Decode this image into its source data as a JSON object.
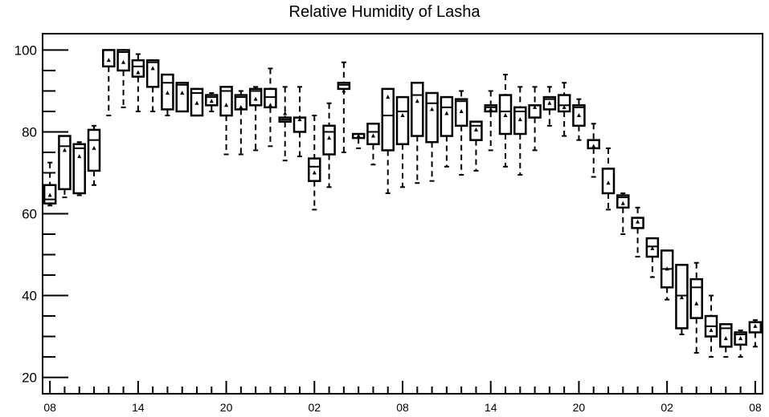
{
  "chart_data": {
    "type": "boxplot",
    "title": "Relative Humidity of Lasha",
    "xlabel": "",
    "ylabel": "",
    "ylim": [
      16,
      104
    ],
    "y_ticks": [
      20,
      40,
      60,
      80,
      100
    ],
    "x_ticks": [
      {
        "index": 0,
        "label": "08"
      },
      {
        "index": 6,
        "label": "14"
      },
      {
        "index": 12,
        "label": "20"
      },
      {
        "index": 18,
        "label": "02"
      },
      {
        "index": 24,
        "label": "08"
      },
      {
        "index": 30,
        "label": "14"
      },
      {
        "index": 36,
        "label": "20"
      },
      {
        "index": 42,
        "label": "02"
      },
      {
        "index": 48,
        "label": "08"
      }
    ],
    "x_range": [
      -0.5,
      48.5
    ],
    "boxes": [
      {
        "i": 0,
        "min": 62,
        "q1": 62.5,
        "median": 63.5,
        "q3": 67,
        "max": 72.5,
        "mean": 64.5
      },
      {
        "i": 1,
        "min": 64,
        "q1": 66,
        "median": 76.5,
        "q3": 79,
        "max": 79,
        "mean": 75.5
      },
      {
        "i": 2,
        "min": 64.5,
        "q1": 65,
        "median": 76,
        "q3": 77,
        "max": 77.5,
        "mean": 74
      },
      {
        "i": 3,
        "min": 67,
        "q1": 70.5,
        "median": 78,
        "q3": 80.5,
        "max": 81.5,
        "mean": 76
      },
      {
        "i": 4,
        "min": 84,
        "q1": 96,
        "median": 100,
        "q3": 100,
        "max": 100,
        "mean": 97.5
      },
      {
        "i": 5,
        "min": 86,
        "q1": 95,
        "median": 99.5,
        "q3": 100,
        "max": 100,
        "mean": 97
      },
      {
        "i": 6,
        "min": 85,
        "q1": 93.5,
        "median": 96,
        "q3": 97.5,
        "max": 99,
        "mean": 94.5
      },
      {
        "i": 7,
        "min": 85,
        "q1": 91,
        "median": 97,
        "q3": 97.5,
        "max": 97.5,
        "mean": 95.5
      },
      {
        "i": 8,
        "min": 84,
        "q1": 85.5,
        "median": 92,
        "q3": 94,
        "max": 94,
        "mean": 89.5
      },
      {
        "i": 9,
        "min": 85,
        "q1": 85,
        "median": 91.5,
        "q3": 92,
        "max": 92,
        "mean": 89.5
      },
      {
        "i": 10,
        "min": 84,
        "q1": 84,
        "median": 89.5,
        "q3": 90.5,
        "max": 90.5,
        "mean": 87
      },
      {
        "i": 11,
        "min": 85,
        "q1": 86.5,
        "median": 88.5,
        "q3": 89,
        "max": 89.5,
        "mean": 87.5
      },
      {
        "i": 12,
        "min": 74.5,
        "q1": 84,
        "median": 90,
        "q3": 91,
        "max": 91,
        "mean": 86.5
      },
      {
        "i": 13,
        "min": 74.5,
        "q1": 85.5,
        "median": 88.5,
        "q3": 89,
        "max": 90,
        "mean": 86
      },
      {
        "i": 14,
        "min": 75.5,
        "q1": 86.5,
        "median": 90,
        "q3": 90.5,
        "max": 91,
        "mean": 88
      },
      {
        "i": 15,
        "min": 76.5,
        "q1": 86,
        "median": 88.5,
        "q3": 90.5,
        "max": 95.5,
        "mean": 86.5
      },
      {
        "i": 16,
        "min": 73,
        "q1": 82.5,
        "median": 83,
        "q3": 83.5,
        "max": 91,
        "mean": 84.5
      },
      {
        "i": 17,
        "min": 74,
        "q1": 80,
        "median": 83.5,
        "q3": 83.5,
        "max": 91,
        "mean": 83
      },
      {
        "i": 18,
        "min": 61,
        "q1": 68,
        "median": 71.5,
        "q3": 73.5,
        "max": 84,
        "mean": 70
      },
      {
        "i": 19,
        "min": 66.5,
        "q1": 74.5,
        "median": 80,
        "q3": 81.5,
        "max": 87,
        "mean": 78.5
      },
      {
        "i": 20,
        "min": 75,
        "q1": 90.5,
        "median": 91.5,
        "q3": 92,
        "max": 97,
        "mean": 90
      },
      {
        "i": 21,
        "min": 76,
        "q1": 78.5,
        "median": 79.5,
        "q3": 79.5,
        "max": 79.5,
        "mean": 79
      },
      {
        "i": 22,
        "min": 72,
        "q1": 77,
        "median": 80,
        "q3": 82,
        "max": 82,
        "mean": 79
      },
      {
        "i": 23,
        "min": 65,
        "q1": 75.5,
        "median": 84,
        "q3": 90.5,
        "max": 90.5,
        "mean": 88.5
      },
      {
        "i": 24,
        "min": 66.5,
        "q1": 77,
        "median": 85,
        "q3": 88.5,
        "max": 88.5,
        "mean": 84
      },
      {
        "i": 25,
        "min": 67.5,
        "q1": 79,
        "median": 89,
        "q3": 92,
        "max": 92,
        "mean": 87.5
      },
      {
        "i": 26,
        "min": 68,
        "q1": 77.5,
        "median": 87,
        "q3": 89.5,
        "max": 89.5,
        "mean": 85.5
      },
      {
        "i": 27,
        "min": 71.5,
        "q1": 79,
        "median": 86,
        "q3": 88.5,
        "max": 88.5,
        "mean": 84.5
      },
      {
        "i": 28,
        "min": 69.5,
        "q1": 81.5,
        "median": 87.5,
        "q3": 88,
        "max": 90,
        "mean": 85
      },
      {
        "i": 29,
        "min": 70.5,
        "q1": 78,
        "median": 81.5,
        "q3": 82.5,
        "max": 82.5,
        "mean": 80.5
      },
      {
        "i": 30,
        "min": 75.5,
        "q1": 85,
        "median": 86,
        "q3": 86.5,
        "max": 90,
        "mean": 85.5
      },
      {
        "i": 31,
        "min": 71.5,
        "q1": 79.5,
        "median": 85,
        "q3": 89,
        "max": 94,
        "mean": 84
      },
      {
        "i": 32,
        "min": 69.5,
        "q1": 79.5,
        "median": 85,
        "q3": 86,
        "max": 91,
        "mean": 83
      },
      {
        "i": 33,
        "min": 75.5,
        "q1": 83.5,
        "median": 86.5,
        "q3": 86.5,
        "max": 91,
        "mean": 86
      },
      {
        "i": 34,
        "min": 81.5,
        "q1": 85.5,
        "median": 88,
        "q3": 88.5,
        "max": 91,
        "mean": 87
      },
      {
        "i": 35,
        "min": 79,
        "q1": 85,
        "median": 86.5,
        "q3": 89,
        "max": 92,
        "mean": 86
      },
      {
        "i": 36,
        "min": 78,
        "q1": 81.5,
        "median": 86,
        "q3": 86.5,
        "max": 88,
        "mean": 84
      },
      {
        "i": 37,
        "min": 69,
        "q1": 76,
        "median": 78,
        "q3": 78,
        "max": 82,
        "mean": 76.5
      },
      {
        "i": 38,
        "min": 61,
        "q1": 65,
        "median": 71,
        "q3": 71,
        "max": 76,
        "mean": 67.5
      },
      {
        "i": 39,
        "min": 55,
        "q1": 61.5,
        "median": 64,
        "q3": 64.5,
        "max": 65,
        "mean": 62.5
      },
      {
        "i": 40,
        "min": 49.5,
        "q1": 56.5,
        "median": 59,
        "q3": 59,
        "max": 61.5,
        "mean": 58
      },
      {
        "i": 41,
        "min": 44.5,
        "q1": 49.5,
        "median": 52,
        "q3": 54,
        "max": 54,
        "mean": 51.5
      },
      {
        "i": 42,
        "min": 39,
        "q1": 42,
        "median": 46.5,
        "q3": 51,
        "max": 51,
        "mean": 46.5
      },
      {
        "i": 43,
        "min": 30.5,
        "q1": 32,
        "median": 40,
        "q3": 47.5,
        "max": 47.5,
        "mean": 39.5
      },
      {
        "i": 44,
        "min": 26,
        "q1": 34.5,
        "median": 42,
        "q3": 44,
        "max": 48,
        "mean": 38
      },
      {
        "i": 45,
        "min": 25,
        "q1": 30,
        "median": 32.5,
        "q3": 35,
        "max": 40,
        "mean": 31.5
      },
      {
        "i": 46,
        "min": 25,
        "q1": 27.5,
        "median": 32,
        "q3": 33,
        "max": 33,
        "mean": 29.5
      },
      {
        "i": 47,
        "min": 25,
        "q1": 28,
        "median": 30.5,
        "q3": 31,
        "max": 31.5,
        "mean": 29.5
      },
      {
        "i": 48,
        "min": 27.5,
        "q1": 31,
        "median": 33.5,
        "q3": 33.5,
        "max": 34,
        "mean": 32.5
      }
    ]
  }
}
